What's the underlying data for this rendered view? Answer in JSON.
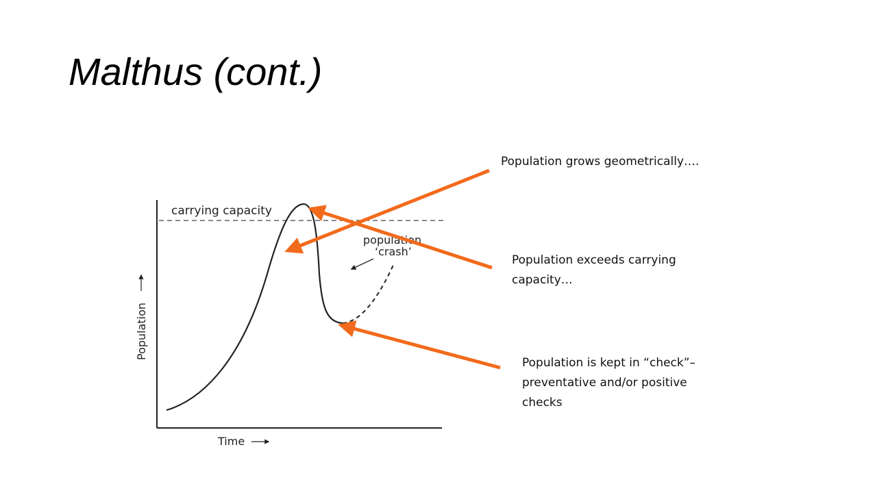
{
  "slide": {
    "title": "Malthus (cont.)"
  },
  "diagram": {
    "carrying_capacity_label": "carrying capacity",
    "crash_label_line1": "population",
    "crash_label_line2": "‘crash’",
    "y_axis_label": "Population",
    "x_axis_label": "Time"
  },
  "annotations": [
    {
      "lines": [
        "Population grows geometrically…."
      ]
    },
    {
      "lines": [
        "Population exceeds carrying",
        "capacity…"
      ]
    },
    {
      "lines": [
        "Population is kept in “check”–",
        "preventative and/or positive",
        "checks"
      ]
    }
  ],
  "colors": {
    "arrow": "#f26a1b",
    "curve": "#222222"
  }
}
